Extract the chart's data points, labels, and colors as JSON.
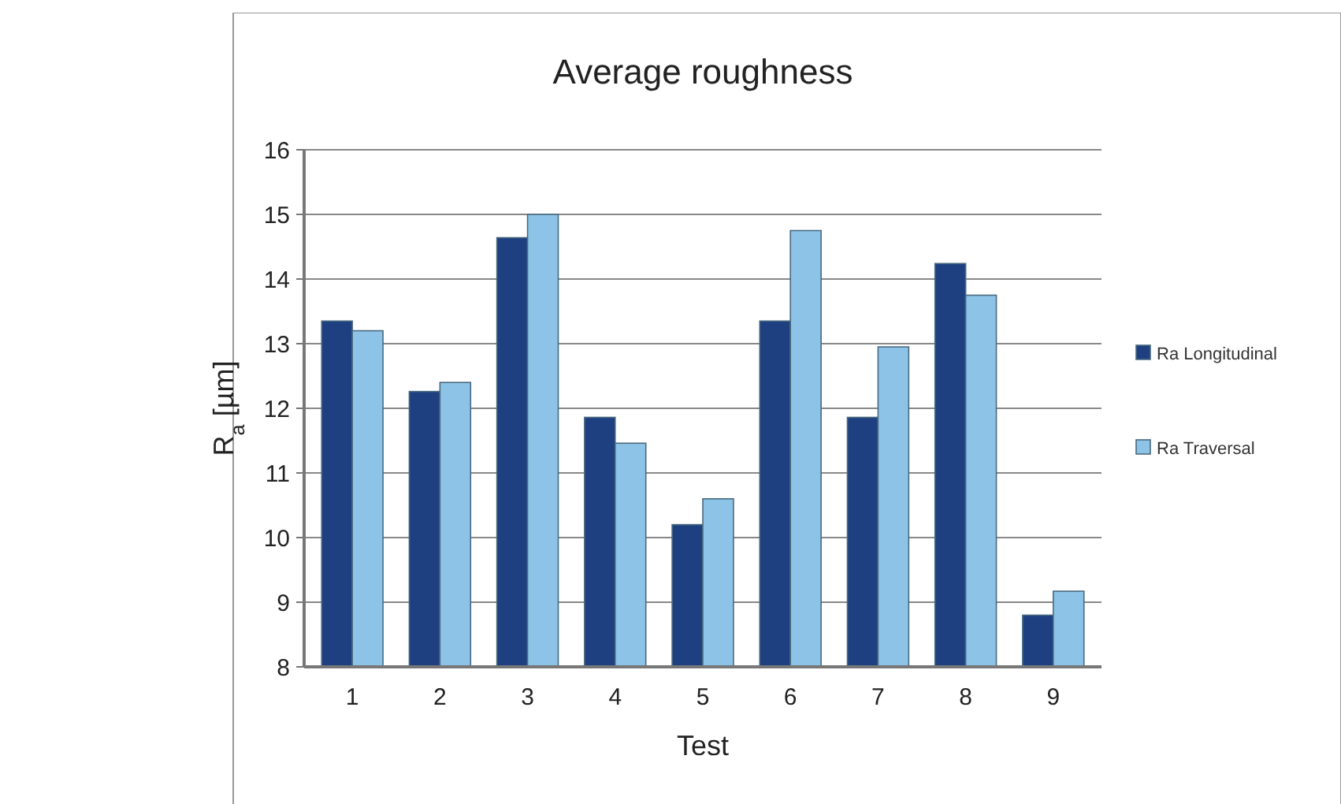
{
  "chart_data": {
    "type": "bar",
    "title": "Average roughness",
    "xlabel": "Test",
    "ylabel": "R$_{a}$ [µm]",
    "categories": [
      "1",
      "2",
      "3",
      "4",
      "5",
      "6",
      "7",
      "8",
      "9"
    ],
    "series": [
      {
        "name": "Ra Longitudinal",
        "color": "#1f4080",
        "values": [
          13.35,
          12.26,
          14.64,
          11.86,
          10.2,
          13.35,
          11.86,
          14.24,
          8.8
        ]
      },
      {
        "name": "Ra Traversal",
        "color": "#8cc3e6",
        "values": [
          13.2,
          12.4,
          15.0,
          11.46,
          10.6,
          14.75,
          12.95,
          13.75,
          9.17
        ]
      }
    ],
    "ylim": [
      8,
      16
    ],
    "yticks": [
      8,
      9,
      10,
      11,
      12,
      13,
      14,
      15,
      16
    ],
    "grid": "y",
    "legend": "right"
  }
}
